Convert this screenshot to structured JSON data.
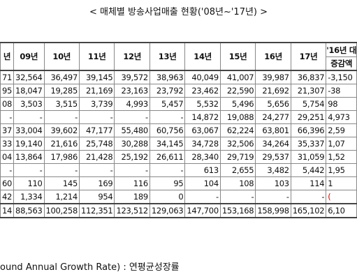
{
  "title": "< 매체별 방송사업매출 현황('08년~'17년) >",
  "table": {
    "header": [
      "년",
      "09년",
      "10년",
      "11년",
      "12년",
      "13년",
      "14년",
      "15년",
      "16년",
      "17년"
    ],
    "last_header": {
      "top": "'16년 대",
      "bottom": "증감액"
    },
    "rows": [
      [
        "71",
        "32,564",
        "36,497",
        "39,145",
        "39,572",
        "38,963",
        "40,049",
        "41,007",
        "39,987",
        "36,837",
        "-3,150"
      ],
      [
        "95",
        "18,047",
        "19,285",
        "21,169",
        "23,163",
        "23,792",
        "23,462",
        "22,590",
        "21,692",
        "21,307",
        "-38"
      ],
      [
        "08",
        "3,503",
        "3,515",
        "3,739",
        "4,993",
        "5,457",
        "5,532",
        "5,496",
        "5,656",
        "5,754",
        "98"
      ],
      [
        "-",
        "-",
        "-",
        "-",
        "-",
        "-",
        "14,872",
        "19,088",
        "24,277",
        "29,251",
        "4,973"
      ],
      [
        "37",
        "33,004",
        "39,602",
        "47,177",
        "55,480",
        "60,756",
        "63,067",
        "62,224",
        "63,801",
        "66,396",
        "2,59"
      ],
      [
        "33",
        "19,140",
        "21,616",
        "25,748",
        "30,288",
        "34,145",
        "34,728",
        "32,506",
        "34,264",
        "35,337",
        "1,07"
      ],
      [
        "04",
        "13,864",
        "17,986",
        "21,428",
        "25,192",
        "26,611",
        "28,340",
        "29,719",
        "29,537",
        "31,059",
        "1,52"
      ],
      [
        "-",
        "-",
        "-",
        "-",
        "-",
        "-",
        "613",
        "2,655",
        "3,482",
        "5,442",
        "1,95"
      ],
      [
        "60",
        "110",
        "145",
        "169",
        "116",
        "95",
        "104",
        "108",
        "103",
        "114",
        "1"
      ],
      [
        "42",
        "1,334",
        "1,214",
        "954",
        "189",
        "0",
        "-",
        "-",
        "-",
        "-",
        "("
      ],
      [
        "14",
        "88,563",
        "100,258",
        "112,351",
        "123,512",
        "129,063",
        "147,700",
        "153,168",
        "158,998",
        "165,102",
        "6,10"
      ]
    ]
  },
  "footnote": "ound Annual Growth Rate) : 연평균성장률"
}
